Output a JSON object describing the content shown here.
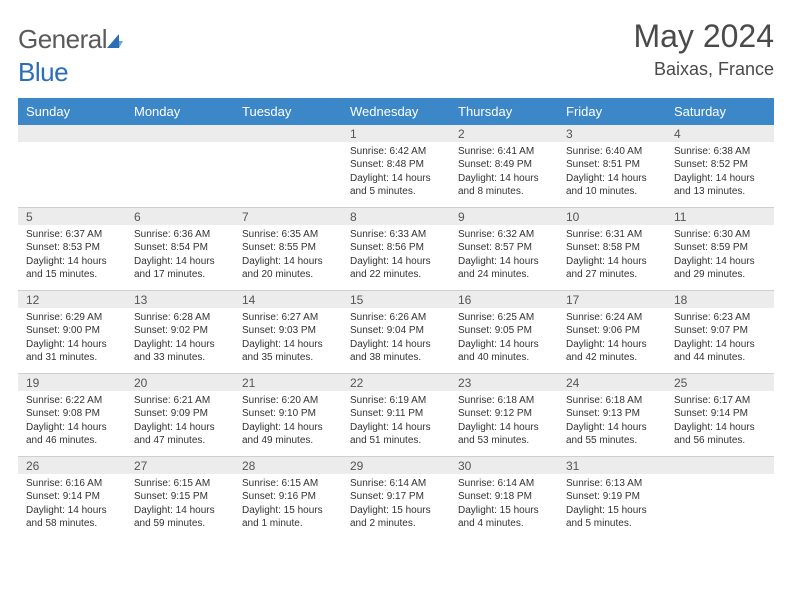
{
  "branding": {
    "logo_prefix": "General",
    "logo_suffix": "Blue",
    "sail_color": "#2a6eb8"
  },
  "header": {
    "month_title": "May 2024",
    "location": "Baixas, France"
  },
  "colors": {
    "header_row_bg": "#3b87c8",
    "header_row_text": "#ffffff",
    "daynum_bg": "#ececec",
    "daynum_text": "#555555",
    "body_text": "#333333",
    "grid_line": "#cfcfcf",
    "page_bg": "#ffffff"
  },
  "weekdays": [
    "Sunday",
    "Monday",
    "Tuesday",
    "Wednesday",
    "Thursday",
    "Friday",
    "Saturday"
  ],
  "weeks": [
    {
      "nums": [
        "",
        "",
        "",
        "1",
        "2",
        "3",
        "4"
      ],
      "details": [
        "",
        "",
        "",
        "Sunrise: 6:42 AM\nSunset: 8:48 PM\nDaylight: 14 hours and 5 minutes.",
        "Sunrise: 6:41 AM\nSunset: 8:49 PM\nDaylight: 14 hours and 8 minutes.",
        "Sunrise: 6:40 AM\nSunset: 8:51 PM\nDaylight: 14 hours and 10 minutes.",
        "Sunrise: 6:38 AM\nSunset: 8:52 PM\nDaylight: 14 hours and 13 minutes."
      ]
    },
    {
      "nums": [
        "5",
        "6",
        "7",
        "8",
        "9",
        "10",
        "11"
      ],
      "details": [
        "Sunrise: 6:37 AM\nSunset: 8:53 PM\nDaylight: 14 hours and 15 minutes.",
        "Sunrise: 6:36 AM\nSunset: 8:54 PM\nDaylight: 14 hours and 17 minutes.",
        "Sunrise: 6:35 AM\nSunset: 8:55 PM\nDaylight: 14 hours and 20 minutes.",
        "Sunrise: 6:33 AM\nSunset: 8:56 PM\nDaylight: 14 hours and 22 minutes.",
        "Sunrise: 6:32 AM\nSunset: 8:57 PM\nDaylight: 14 hours and 24 minutes.",
        "Sunrise: 6:31 AM\nSunset: 8:58 PM\nDaylight: 14 hours and 27 minutes.",
        "Sunrise: 6:30 AM\nSunset: 8:59 PM\nDaylight: 14 hours and 29 minutes."
      ]
    },
    {
      "nums": [
        "12",
        "13",
        "14",
        "15",
        "16",
        "17",
        "18"
      ],
      "details": [
        "Sunrise: 6:29 AM\nSunset: 9:00 PM\nDaylight: 14 hours and 31 minutes.",
        "Sunrise: 6:28 AM\nSunset: 9:02 PM\nDaylight: 14 hours and 33 minutes.",
        "Sunrise: 6:27 AM\nSunset: 9:03 PM\nDaylight: 14 hours and 35 minutes.",
        "Sunrise: 6:26 AM\nSunset: 9:04 PM\nDaylight: 14 hours and 38 minutes.",
        "Sunrise: 6:25 AM\nSunset: 9:05 PM\nDaylight: 14 hours and 40 minutes.",
        "Sunrise: 6:24 AM\nSunset: 9:06 PM\nDaylight: 14 hours and 42 minutes.",
        "Sunrise: 6:23 AM\nSunset: 9:07 PM\nDaylight: 14 hours and 44 minutes."
      ]
    },
    {
      "nums": [
        "19",
        "20",
        "21",
        "22",
        "23",
        "24",
        "25"
      ],
      "details": [
        "Sunrise: 6:22 AM\nSunset: 9:08 PM\nDaylight: 14 hours and 46 minutes.",
        "Sunrise: 6:21 AM\nSunset: 9:09 PM\nDaylight: 14 hours and 47 minutes.",
        "Sunrise: 6:20 AM\nSunset: 9:10 PM\nDaylight: 14 hours and 49 minutes.",
        "Sunrise: 6:19 AM\nSunset: 9:11 PM\nDaylight: 14 hours and 51 minutes.",
        "Sunrise: 6:18 AM\nSunset: 9:12 PM\nDaylight: 14 hours and 53 minutes.",
        "Sunrise: 6:18 AM\nSunset: 9:13 PM\nDaylight: 14 hours and 55 minutes.",
        "Sunrise: 6:17 AM\nSunset: 9:14 PM\nDaylight: 14 hours and 56 minutes."
      ]
    },
    {
      "nums": [
        "26",
        "27",
        "28",
        "29",
        "30",
        "31",
        ""
      ],
      "details": [
        "Sunrise: 6:16 AM\nSunset: 9:14 PM\nDaylight: 14 hours and 58 minutes.",
        "Sunrise: 6:15 AM\nSunset: 9:15 PM\nDaylight: 14 hours and 59 minutes.",
        "Sunrise: 6:15 AM\nSunset: 9:16 PM\nDaylight: 15 hours and 1 minute.",
        "Sunrise: 6:14 AM\nSunset: 9:17 PM\nDaylight: 15 hours and 2 minutes.",
        "Sunrise: 6:14 AM\nSunset: 9:18 PM\nDaylight: 15 hours and 4 minutes.",
        "Sunrise: 6:13 AM\nSunset: 9:19 PM\nDaylight: 15 hours and 5 minutes.",
        ""
      ]
    }
  ]
}
